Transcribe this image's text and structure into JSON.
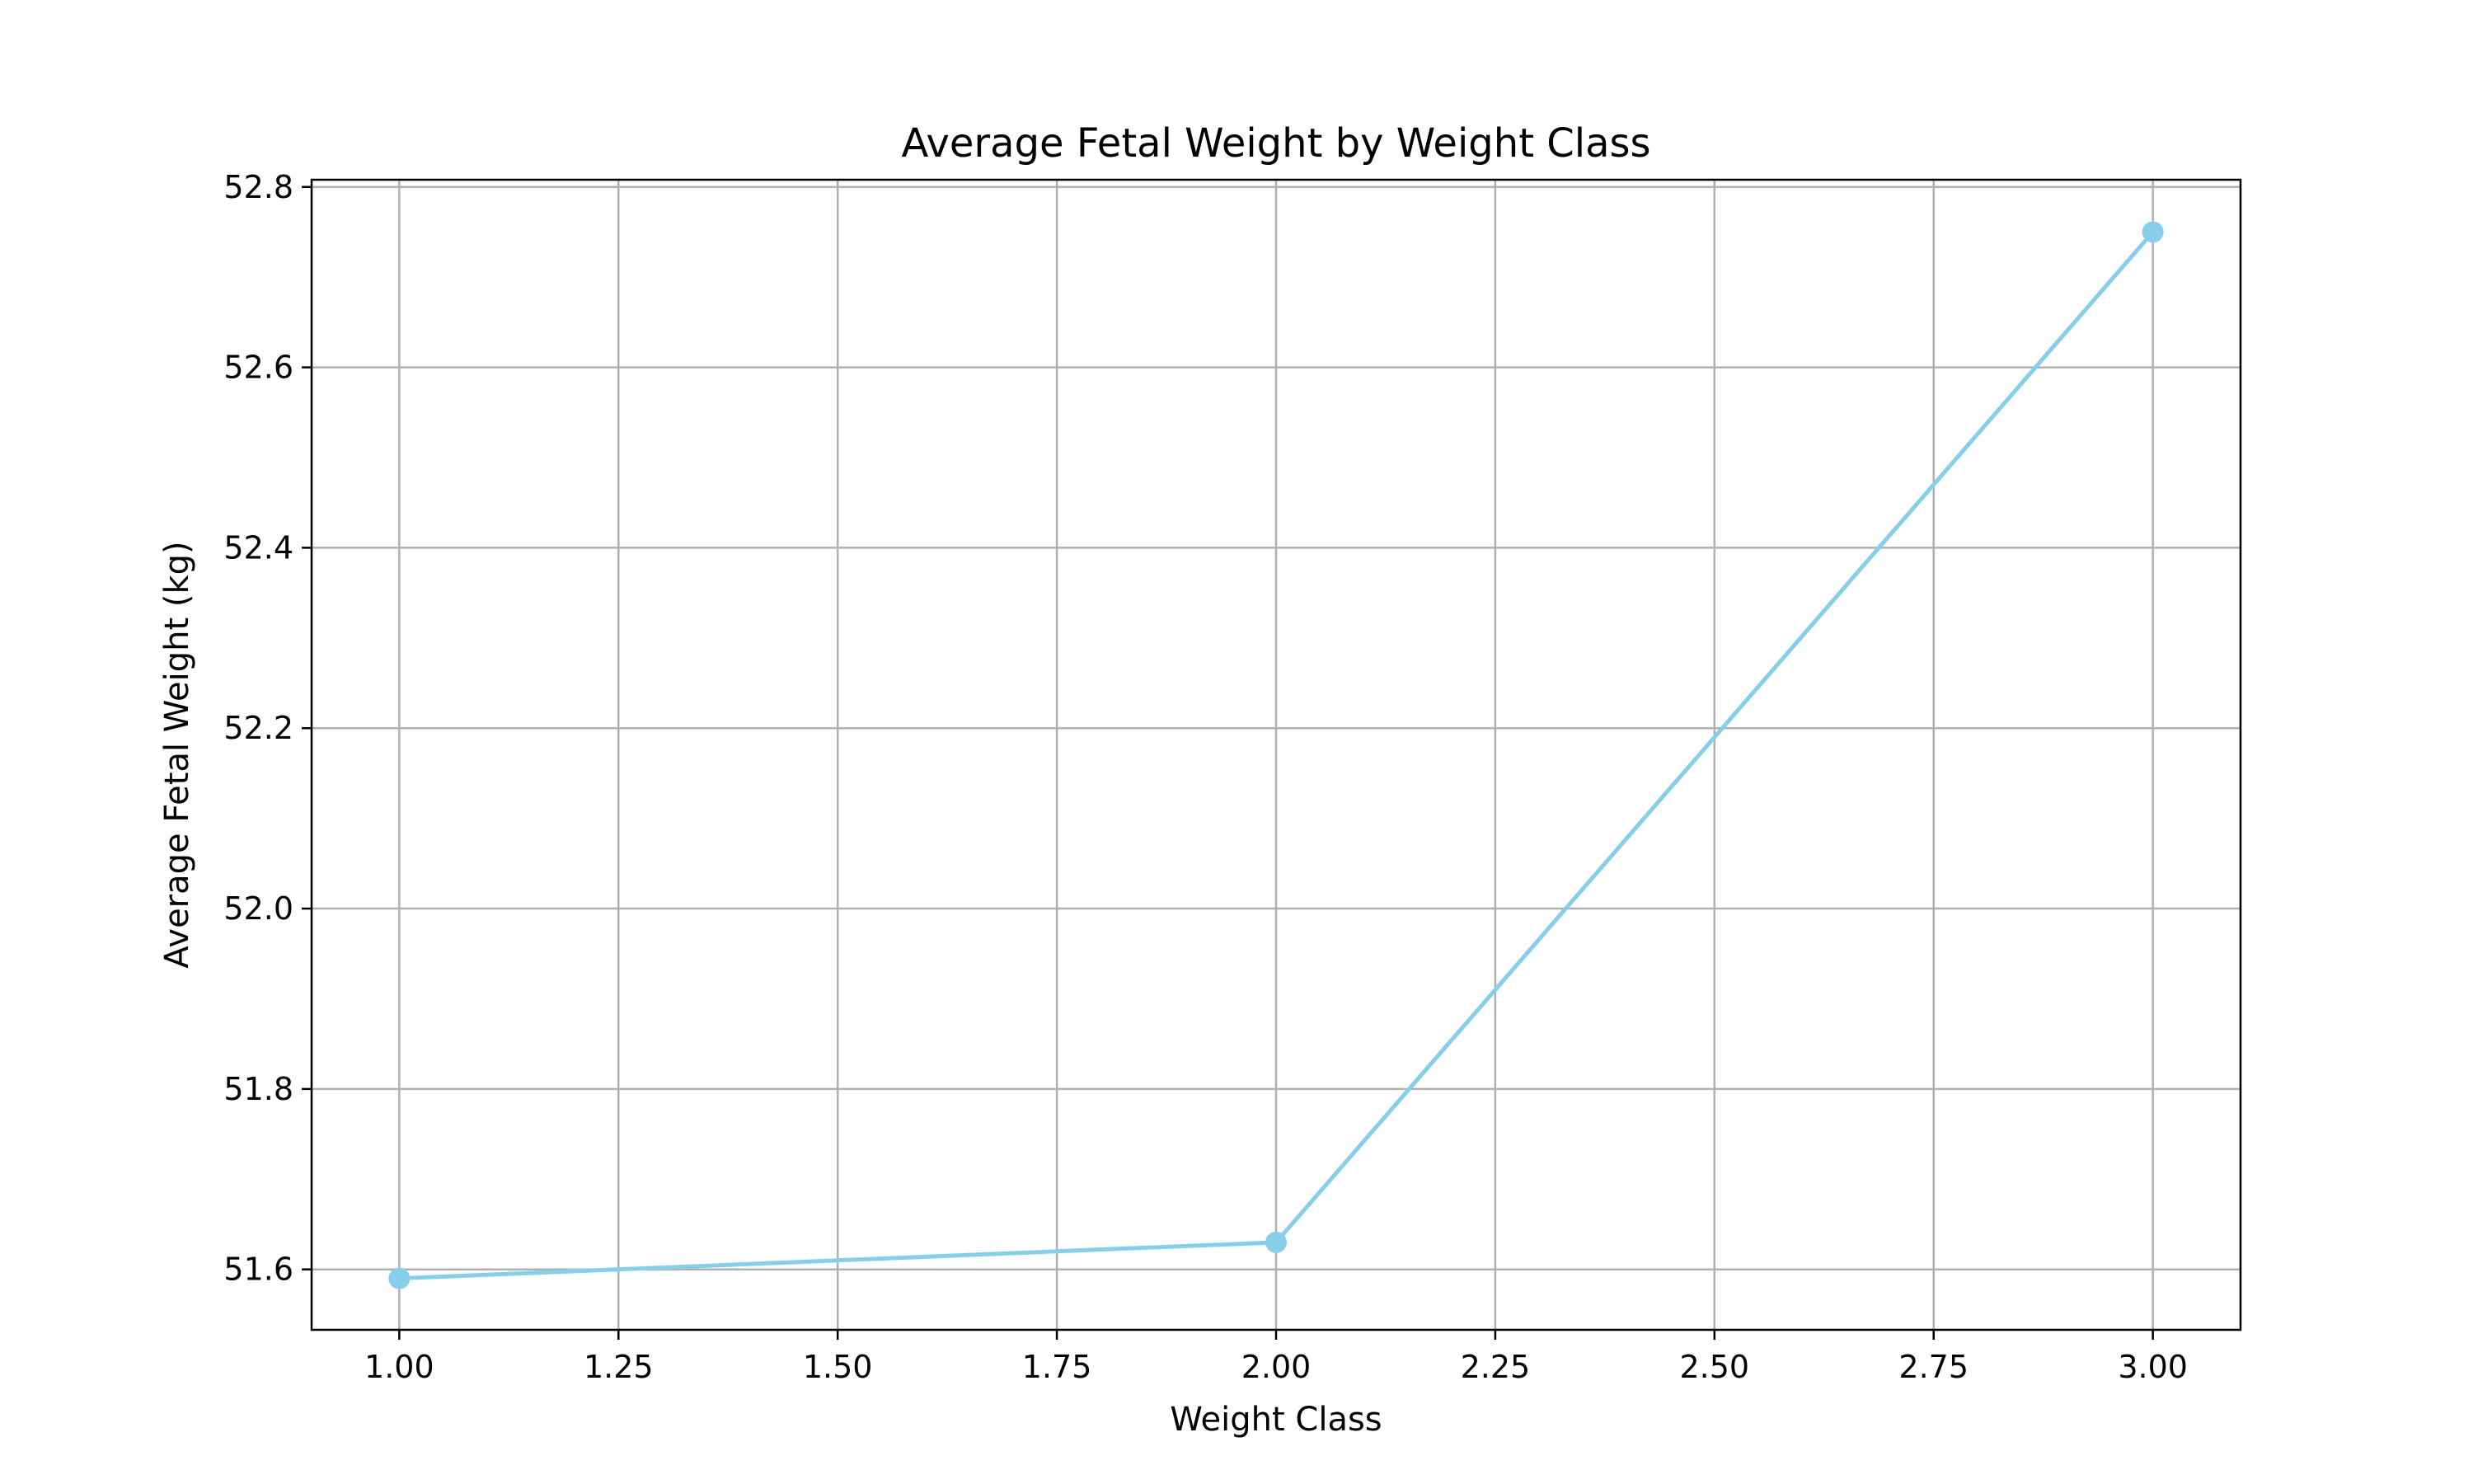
{
  "chart_data": {
    "type": "line",
    "title": "Average Fetal Weight by Weight Class",
    "xlabel": "Weight Class",
    "ylabel": "Average Fetal Weight (kg)",
    "xlim": [
      0.9,
      3.1
    ],
    "ylim": [
      51.533,
      52.808
    ],
    "x_ticks": [
      1.0,
      1.25,
      1.5,
      1.75,
      2.0,
      2.25,
      2.5,
      2.75,
      3.0
    ],
    "x_tick_labels": [
      "1.00",
      "1.25",
      "1.50",
      "1.75",
      "2.00",
      "2.25",
      "2.50",
      "2.75",
      "3.00"
    ],
    "y_ticks": [
      51.6,
      51.8,
      52.0,
      52.2,
      52.4,
      52.6,
      52.8
    ],
    "y_tick_labels": [
      "51.6",
      "51.8",
      "52.0",
      "52.2",
      "52.4",
      "52.6",
      "52.8"
    ],
    "grid": true,
    "series": [
      {
        "color": "#87CEEB",
        "marker": "circle",
        "x": [
          1,
          2,
          3
        ],
        "y": [
          51.59,
          51.63,
          52.75
        ]
      }
    ]
  }
}
